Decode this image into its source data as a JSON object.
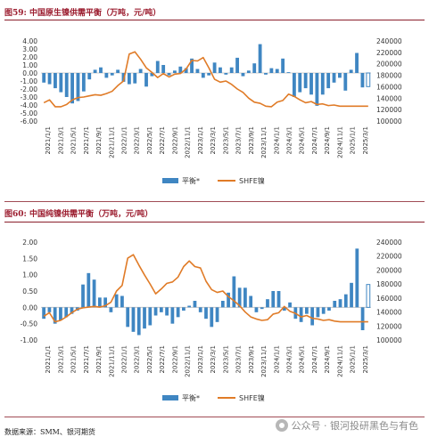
{
  "figures": [
    {
      "number": "图59:",
      "title": "中国原生镍供需平衡（万吨，元/吨）"
    },
    {
      "number": "图60:",
      "title": "中国纯镍供需平衡（万吨，元/吨）"
    }
  ],
  "source": "数据来源：SMM、银河期货",
  "watermark": "公众号 · 银河投研黑色与有色",
  "colors": {
    "bar": "#3f86c2",
    "line": "#e07b27",
    "title": "#9b1c2e"
  },
  "chart_data": [
    {
      "type": "bar",
      "title": "",
      "x_tick_labels": [
        "2021/1/1",
        "2021/3/1",
        "2021/5/1",
        "2021/7/1",
        "2021/9/1",
        "2021/11/1",
        "2022/1/1",
        "2022/3/1",
        "2022/5/1",
        "2022/7/1",
        "2022/9/1",
        "2022/11/1",
        "2023/1/1",
        "2023/3/1",
        "2023/5/1",
        "2023/7/1",
        "2023/9/1",
        "2023/11/1",
        "2024/1/1",
        "2024/3/1",
        "2024/5/1",
        "2024/7/1",
        "2024/9/1",
        "2024/11/1",
        "2025/1/1",
        "2025/3/1"
      ],
      "y_left_ticks": [
        "4.00",
        "3.00",
        "2.00",
        "1.00",
        "0.00",
        "-1.00",
        "-2.00",
        "-3.00",
        "-4.00",
        "-5.00",
        "-6.00"
      ],
      "y_left_range": [
        -6,
        4
      ],
      "y_right_ticks": [
        "240000",
        "220000",
        "200000",
        "180000",
        "160000",
        "140000",
        "120000",
        "100000"
      ],
      "y_right_range": [
        100000,
        240000
      ],
      "legend": {
        "position": "bottom",
        "bar_label": "平衡*",
        "line_label": "SHFE镍"
      },
      "series": [
        {
          "name": "平衡*",
          "type": "bar",
          "axis": "left",
          "values": [
            -1.2,
            -1.4,
            -1.9,
            -2.4,
            -3.0,
            -3.8,
            -3.5,
            -2.3,
            -0.8,
            0.4,
            0.7,
            -0.6,
            -0.3,
            0.4,
            -1.1,
            -1.4,
            -1.3,
            0.5,
            -1.7,
            -0.4,
            1.5,
            1.0,
            -0.3,
            0.3,
            0.8,
            0.6,
            1.8,
            0.5,
            -0.6,
            -0.3,
            1.3,
            0.7,
            -0.2,
            0.7,
            1.9,
            -0.4,
            0.3,
            1.2,
            3.6,
            -0.2,
            0.6,
            0.5,
            1.8,
            0.1,
            -3.0,
            -2.4,
            -1.9,
            -2.7,
            -4.1,
            -2.7,
            -1.9,
            -1.2,
            -0.6,
            -2.2,
            0.4,
            2.5,
            -1.8,
            -1.7
          ],
          "last_bar_hollow": true
        },
        {
          "name": "SHFE镍",
          "type": "line",
          "axis": "right",
          "values": [
            132000,
            137000,
            125000,
            125000,
            129000,
            137000,
            141000,
            142000,
            144000,
            146000,
            145000,
            148000,
            152000,
            162000,
            170000,
            217000,
            221000,
            208000,
            193000,
            185000,
            176000,
            183000,
            177000,
            182000,
            183000,
            191000,
            206000,
            205000,
            211000,
            193000,
            173000,
            168000,
            170000,
            164000,
            156000,
            150000,
            140000,
            133000,
            131000,
            126000,
            125000,
            133000,
            136000,
            147000,
            143000,
            137000,
            132000,
            134000,
            129000,
            130000,
            127000,
            128000,
            126000,
            126000,
            126000,
            126000,
            126000,
            126000
          ]
        }
      ]
    },
    {
      "type": "bar",
      "title": "",
      "x_tick_labels": [
        "2021/1/1",
        "2021/3/1",
        "2021/5/1",
        "2021/7/1",
        "2021/9/1",
        "2021/11/1",
        "2022/1/1",
        "2022/3/1",
        "2022/5/1",
        "2022/7/1",
        "2022/9/1",
        "2022/11/1",
        "2023/1/1",
        "2023/3/1",
        "2023/5/1",
        "2023/7/1",
        "2023/9/1",
        "2023/11/1",
        "2024/1/1",
        "2024/3/1",
        "2024/5/1",
        "2024/7/1",
        "2024/9/1",
        "2024/11/1",
        "2025/1/1",
        "2025/3/1"
      ],
      "y_left_ticks": [
        "2.00",
        "1.50",
        "1.00",
        "0.50",
        "0.00",
        "-0.50",
        "-1.00"
      ],
      "y_left_range": [
        -1,
        2
      ],
      "y_right_ticks": [
        "240000",
        "220000",
        "200000",
        "180000",
        "160000",
        "140000",
        "120000",
        "100000"
      ],
      "y_right_range": [
        100000,
        240000
      ],
      "legend": {
        "position": "bottom",
        "bar_label": "平衡*",
        "line_label": "SHFE镍"
      },
      "series": [
        {
          "name": "平衡*",
          "type": "bar",
          "axis": "left",
          "values": [
            -0.35,
            -0.15,
            -0.5,
            -0.4,
            -0.3,
            -0.2,
            -0.1,
            0.7,
            1.05,
            0.85,
            0.3,
            0.3,
            -0.15,
            0.4,
            0.35,
            -0.6,
            -0.75,
            -0.85,
            -0.65,
            -0.55,
            -0.25,
            -0.15,
            -0.25,
            -0.5,
            -0.3,
            -0.1,
            0.05,
            0.2,
            -0.15,
            -0.35,
            -0.6,
            -0.45,
            0.2,
            0.45,
            0.95,
            0.6,
            0.6,
            0.35,
            -0.15,
            -0.05,
            0.25,
            0.5,
            0.5,
            -0.1,
            0.15,
            -0.35,
            -0.45,
            -0.2,
            -0.55,
            -0.3,
            -0.2,
            -0.1,
            0.2,
            0.25,
            0.4,
            0.75,
            1.8,
            -0.7,
            0.7
          ],
          "last_bar_hollow": true
        },
        {
          "name": "SHFE镍",
          "type": "line",
          "axis": "right",
          "values": [
            134000,
            139000,
            126000,
            128000,
            133000,
            139000,
            144000,
            146000,
            147000,
            148000,
            147000,
            149000,
            154000,
            170000,
            178000,
            217000,
            222000,
            207000,
            193000,
            180000,
            166000,
            173000,
            181000,
            183000,
            190000,
            205000,
            213000,
            205000,
            203000,
            184000,
            172000,
            168000,
            170000,
            162000,
            156000,
            149000,
            140000,
            133000,
            130000,
            128000,
            129000,
            137000,
            139000,
            148000,
            141000,
            138000,
            133000,
            135000,
            131000,
            130000,
            128000,
            129000,
            127000,
            126000,
            126000,
            126000,
            126000,
            126000,
            126000
          ]
        }
      ]
    }
  ]
}
